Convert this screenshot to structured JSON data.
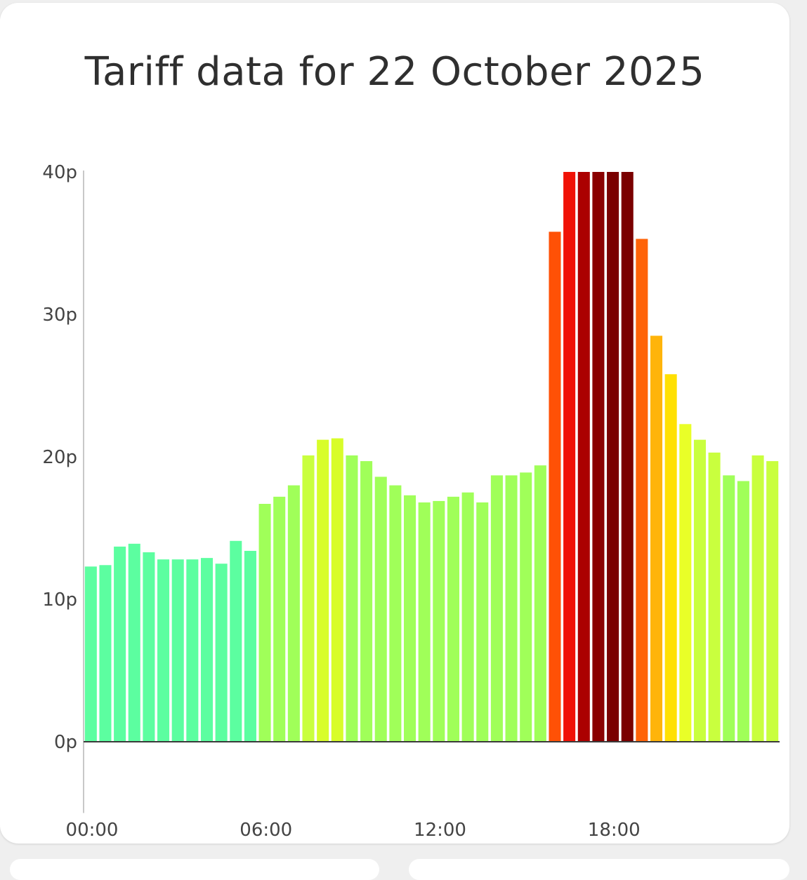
{
  "card": {
    "title": "Tariff data for 22 October 2025"
  },
  "chart_data": {
    "type": "bar",
    "title": "Tariff data for 22 October 2025",
    "xlabel": "",
    "ylabel": "",
    "ylim": [
      -5,
      40
    ],
    "y_ticks": [
      {
        "value": 0,
        "label": "0p"
      },
      {
        "value": 10,
        "label": "10p"
      },
      {
        "value": 20,
        "label": "20p"
      },
      {
        "value": 30,
        "label": "30p"
      },
      {
        "value": 40,
        "label": "40p"
      }
    ],
    "x_ticks": [
      {
        "index": 0,
        "label": "00:00"
      },
      {
        "index": 12,
        "label": "06:00"
      },
      {
        "index": 24,
        "label": "12:00"
      },
      {
        "index": 36,
        "label": "18:00"
      }
    ],
    "categories": [
      "00:00",
      "00:30",
      "01:00",
      "01:30",
      "02:00",
      "02:30",
      "03:00",
      "03:30",
      "04:00",
      "04:30",
      "05:00",
      "05:30",
      "06:00",
      "06:30",
      "07:00",
      "07:30",
      "08:00",
      "08:30",
      "09:00",
      "09:30",
      "10:00",
      "10:30",
      "11:00",
      "11:30",
      "12:00",
      "12:30",
      "13:00",
      "13:30",
      "14:00",
      "14:30",
      "15:00",
      "15:30",
      "16:00",
      "16:30",
      "17:00",
      "17:30",
      "18:00",
      "18:30",
      "19:00",
      "19:30",
      "20:00",
      "20:30",
      "21:00",
      "21:30",
      "22:00",
      "22:30",
      "23:00",
      "23:30"
    ],
    "values": [
      12.3,
      12.4,
      13.7,
      13.9,
      13.3,
      12.8,
      12.8,
      12.8,
      12.9,
      12.5,
      14.1,
      13.4,
      16.7,
      17.2,
      18.0,
      20.1,
      21.2,
      21.3,
      20.1,
      19.7,
      18.6,
      18.0,
      17.3,
      16.8,
      16.9,
      17.2,
      17.5,
      16.8,
      18.7,
      18.7,
      18.9,
      19.4,
      35.8,
      40.0,
      40.0,
      40.0,
      40.0,
      40.0,
      35.3,
      28.5,
      25.8,
      22.3,
      21.2,
      20.3,
      18.7,
      18.3,
      20.1,
      19.7
    ],
    "colors": [
      "#5cfea0",
      "#5cfea0",
      "#5cfea0",
      "#5cfea0",
      "#5cfea0",
      "#5cfea0",
      "#5cfea0",
      "#5cfea0",
      "#5cfea0",
      "#5cfea0",
      "#5cfea0",
      "#5cfea0",
      "#a0ff59",
      "#a0ff59",
      "#a0ff59",
      "#c9ff3e",
      "#d8fd2a",
      "#d8fd2a",
      "#a0ff59",
      "#a0ff59",
      "#a0ff59",
      "#a0ff59",
      "#a0ff59",
      "#a0ff59",
      "#a0ff59",
      "#a0ff59",
      "#a0ff59",
      "#a0ff59",
      "#a0ff59",
      "#a0ff59",
      "#a0ff59",
      "#a0ff59",
      "#ff5106",
      "#f01206",
      "#ab0000",
      "#8a0000",
      "#7a0000",
      "#7a0000",
      "#ff6308",
      "#ffb40a",
      "#ffe002",
      "#e9ff28",
      "#c9ff3e",
      "#c9ff3e",
      "#a0ff59",
      "#a0ff59",
      "#c9ff3e",
      "#c9ff3e"
    ],
    "grid": false,
    "legend": "none"
  }
}
